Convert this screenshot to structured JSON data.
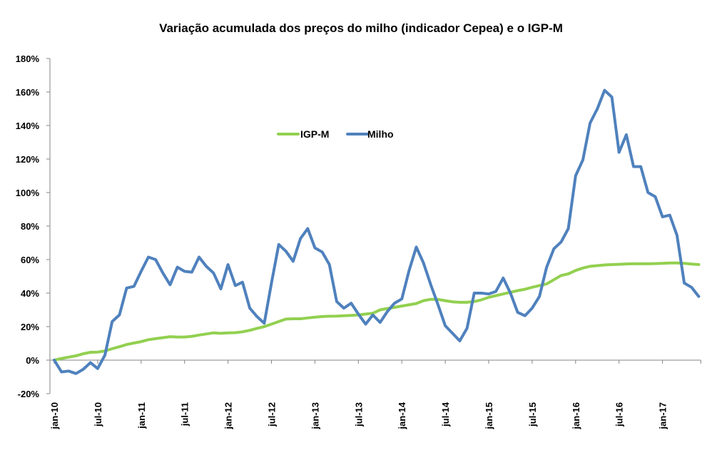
{
  "chart_data": {
    "type": "line",
    "title": "Variação acumulada dos preços do milho (indicador Cepea) e o IGP-M",
    "xlabel": "",
    "ylabel": "",
    "ylim": [
      -20,
      180
    ],
    "y_ticks": [
      -20,
      0,
      20,
      40,
      60,
      80,
      100,
      120,
      140,
      160,
      180
    ],
    "y_tick_labels": [
      "-20%",
      "0%",
      "20%",
      "40%",
      "60%",
      "80%",
      "100%",
      "120%",
      "140%",
      "160%",
      "180%"
    ],
    "x_tick_labels": [
      "jan-10",
      "jul-10",
      "jan-11",
      "jul-11",
      "jan-12",
      "jul-12",
      "jan-13",
      "jul-13",
      "jan-14",
      "jul-14",
      "jan-15",
      "jul-15",
      "jan-16",
      "jul-16",
      "jan-17"
    ],
    "x_tick_step_months": 6,
    "x_start": "jan-10",
    "x_end": "jun-17",
    "grid": false,
    "legend_position": "top-center",
    "series": [
      {
        "name": "IGP-M",
        "color": "#92D050",
        "values": [
          0,
          1,
          1.8,
          2.6,
          3.8,
          4.7,
          4.8,
          5.5,
          6.8,
          8,
          9.3,
          10.2,
          11,
          12.2,
          12.8,
          13.4,
          14,
          13.8,
          13.8,
          14.2,
          15,
          15.6,
          16.3,
          16,
          16.3,
          16.4,
          16.9,
          17.8,
          19,
          20,
          21.5,
          23,
          24.5,
          24.7,
          24.7,
          25.2,
          25.6,
          26,
          26.2,
          26.3,
          26.5,
          26.7,
          27,
          27.5,
          28,
          30,
          30.8,
          31.5,
          32.3,
          33,
          33.8,
          35.5,
          36.3,
          36.2,
          35.5,
          34.8,
          34.5,
          34.5,
          35,
          36,
          37.5,
          38.5,
          39.5,
          40.5,
          41.5,
          42.3,
          43.5,
          44.5,
          45.5,
          48,
          50.5,
          51.5,
          53.5,
          55,
          56,
          56.4,
          56.8,
          57,
          57.2,
          57.4,
          57.5,
          57.5,
          57.5,
          57.6,
          57.8,
          58,
          58,
          57.8,
          57.3,
          57
        ]
      },
      {
        "name": "Milho",
        "color": "#4F81BD",
        "values": [
          0,
          -7,
          -6.5,
          -8,
          -5.5,
          -1.5,
          -5,
          3,
          23,
          27,
          43,
          44,
          53,
          61.5,
          60,
          52,
          45,
          55.5,
          53,
          52.5,
          61.5,
          56,
          52,
          42.5,
          57,
          44.5,
          46.5,
          31,
          26,
          22,
          46,
          69,
          65,
          59,
          72.5,
          78.5,
          67,
          64.5,
          57,
          35,
          31,
          34,
          27.5,
          21.5,
          27,
          22.5,
          29,
          34,
          36.5,
          53.5,
          67.5,
          58,
          45,
          33,
          20.5,
          16,
          11.5,
          19,
          40,
          40,
          39.5,
          41,
          49,
          40,
          28.5,
          26.5,
          31,
          38,
          55.5,
          66.5,
          70.5,
          78.5,
          110,
          119.5,
          141.5,
          150,
          161,
          157,
          124,
          134.5,
          115.5,
          115.5,
          100,
          97.5,
          85.5,
          86.5,
          74.5,
          46,
          43.5,
          38
        ]
      }
    ]
  }
}
